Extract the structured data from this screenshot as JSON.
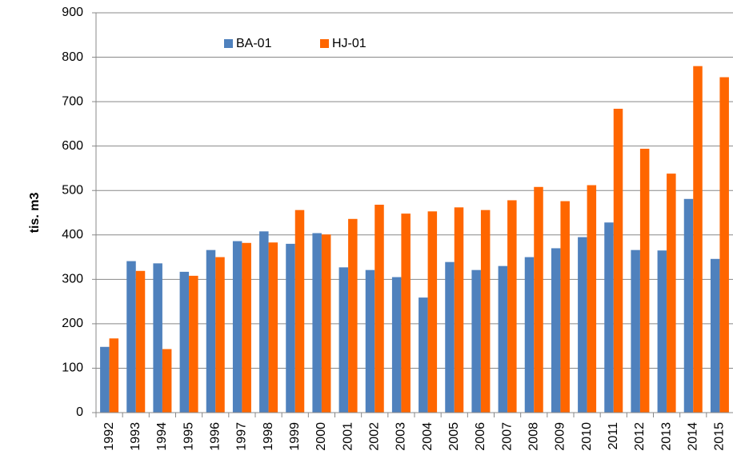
{
  "chart_data": {
    "type": "bar",
    "ylabel": "tis. m3",
    "categories": [
      "1992",
      "1993",
      "1994",
      "1995",
      "1996",
      "1997",
      "1998",
      "1999",
      "2000",
      "2001",
      "2002",
      "2003",
      "2004",
      "2005",
      "2006",
      "2007",
      "2008",
      "2009",
      "2010",
      "2011",
      "2012",
      "2013",
      "2014",
      "2015"
    ],
    "series": [
      {
        "name": "BA-01",
        "color": "#4f81bd",
        "values": [
          148,
          341,
          336,
          317,
          366,
          386,
          408,
          380,
          404,
          327,
          321,
          305,
          259,
          339,
          321,
          330,
          350,
          370,
          395,
          428,
          366,
          365,
          481,
          346
        ]
      },
      {
        "name": "HJ-01",
        "color": "#ff6600",
        "values": [
          167,
          319,
          143,
          308,
          350,
          382,
          383,
          456,
          401,
          436,
          468,
          448,
          453,
          462,
          456,
          478,
          508,
          476,
          512,
          684,
          594,
          538,
          780,
          755
        ]
      }
    ],
    "ylim": [
      0,
      900
    ],
    "yticks": [
      0,
      100,
      200,
      300,
      400,
      500,
      600,
      700,
      800,
      900
    ],
    "grid": true
  }
}
